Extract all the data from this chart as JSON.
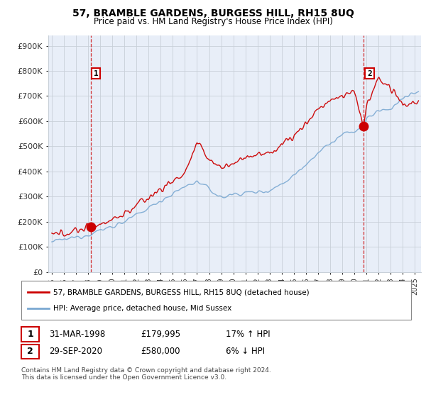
{
  "title": "57, BRAMBLE GARDENS, BURGESS HILL, RH15 8UQ",
  "subtitle": "Price paid vs. HM Land Registry's House Price Index (HPI)",
  "ylabel_ticks": [
    "£0",
    "£100K",
    "£200K",
    "£300K",
    "£400K",
    "£500K",
    "£600K",
    "£700K",
    "£800K",
    "£900K"
  ],
  "ytick_vals": [
    0,
    100000,
    200000,
    300000,
    400000,
    500000,
    600000,
    700000,
    800000,
    900000
  ],
  "ylim": [
    0,
    940000
  ],
  "xlim_start": 1994.7,
  "xlim_end": 2025.5,
  "sale1_date": 1998.25,
  "sale1_price": 179995,
  "sale1_label": "1",
  "sale2_date": 2020.75,
  "sale2_price": 580000,
  "sale2_label": "2",
  "legend_line1": "57, BRAMBLE GARDENS, BURGESS HILL, RH15 8UQ (detached house)",
  "legend_line2": "HPI: Average price, detached house, Mid Sussex",
  "table_row1": [
    "1",
    "31-MAR-1998",
    "£179,995",
    "17% ↑ HPI"
  ],
  "table_row2": [
    "2",
    "29-SEP-2020",
    "£580,000",
    "6% ↓ HPI"
  ],
  "footer": "Contains HM Land Registry data © Crown copyright and database right 2024.\nThis data is licensed under the Open Government Licence v3.0.",
  "line_color_red": "#cc0000",
  "line_color_blue": "#7aa8d2",
  "grid_color": "#c8d0d8",
  "background_color": "#ffffff",
  "plot_bg_color": "#e8eef8",
  "hpi_knots_t": [
    1995,
    1996,
    1997,
    1998,
    1999,
    2000,
    2001,
    2002,
    2003,
    2004,
    2005,
    2006,
    2007,
    2008,
    2009,
    2010,
    2011,
    2012,
    2013,
    2014,
    2015,
    2016,
    2017,
    2018,
    2019,
    2020,
    2020.75,
    2021,
    2022,
    2023,
    2024,
    2025.3
  ],
  "hpi_knots_v": [
    120000,
    128000,
    138000,
    150000,
    165000,
    182000,
    200000,
    225000,
    255000,
    285000,
    310000,
    340000,
    360000,
    330000,
    295000,
    310000,
    315000,
    318000,
    325000,
    350000,
    385000,
    430000,
    475000,
    510000,
    545000,
    560000,
    578000,
    610000,
    640000,
    650000,
    690000,
    715000
  ],
  "prop_knots_t": [
    1995,
    1996,
    1997,
    1998.25,
    1999,
    2000,
    2001,
    2002,
    2003,
    2004,
    2005,
    2006,
    2007,
    2008,
    2009,
    2010,
    2011,
    2012,
    2013,
    2014,
    2015,
    2016,
    2017,
    2018,
    2019,
    2020,
    2020.75,
    2021,
    2022,
    2023,
    2024,
    2025.3
  ],
  "prop_knots_v": [
    145000,
    155000,
    165000,
    179995,
    192000,
    210000,
    230000,
    265000,
    295000,
    330000,
    360000,
    395000,
    510000,
    450000,
    415000,
    430000,
    460000,
    465000,
    470000,
    510000,
    540000,
    590000,
    650000,
    680000,
    700000,
    720000,
    580000,
    660000,
    770000,
    730000,
    660000,
    680000
  ],
  "noise_seed": 12345,
  "hpi_noise_scale": 8000,
  "prop_noise_scale": 12000,
  "n_points": 400
}
